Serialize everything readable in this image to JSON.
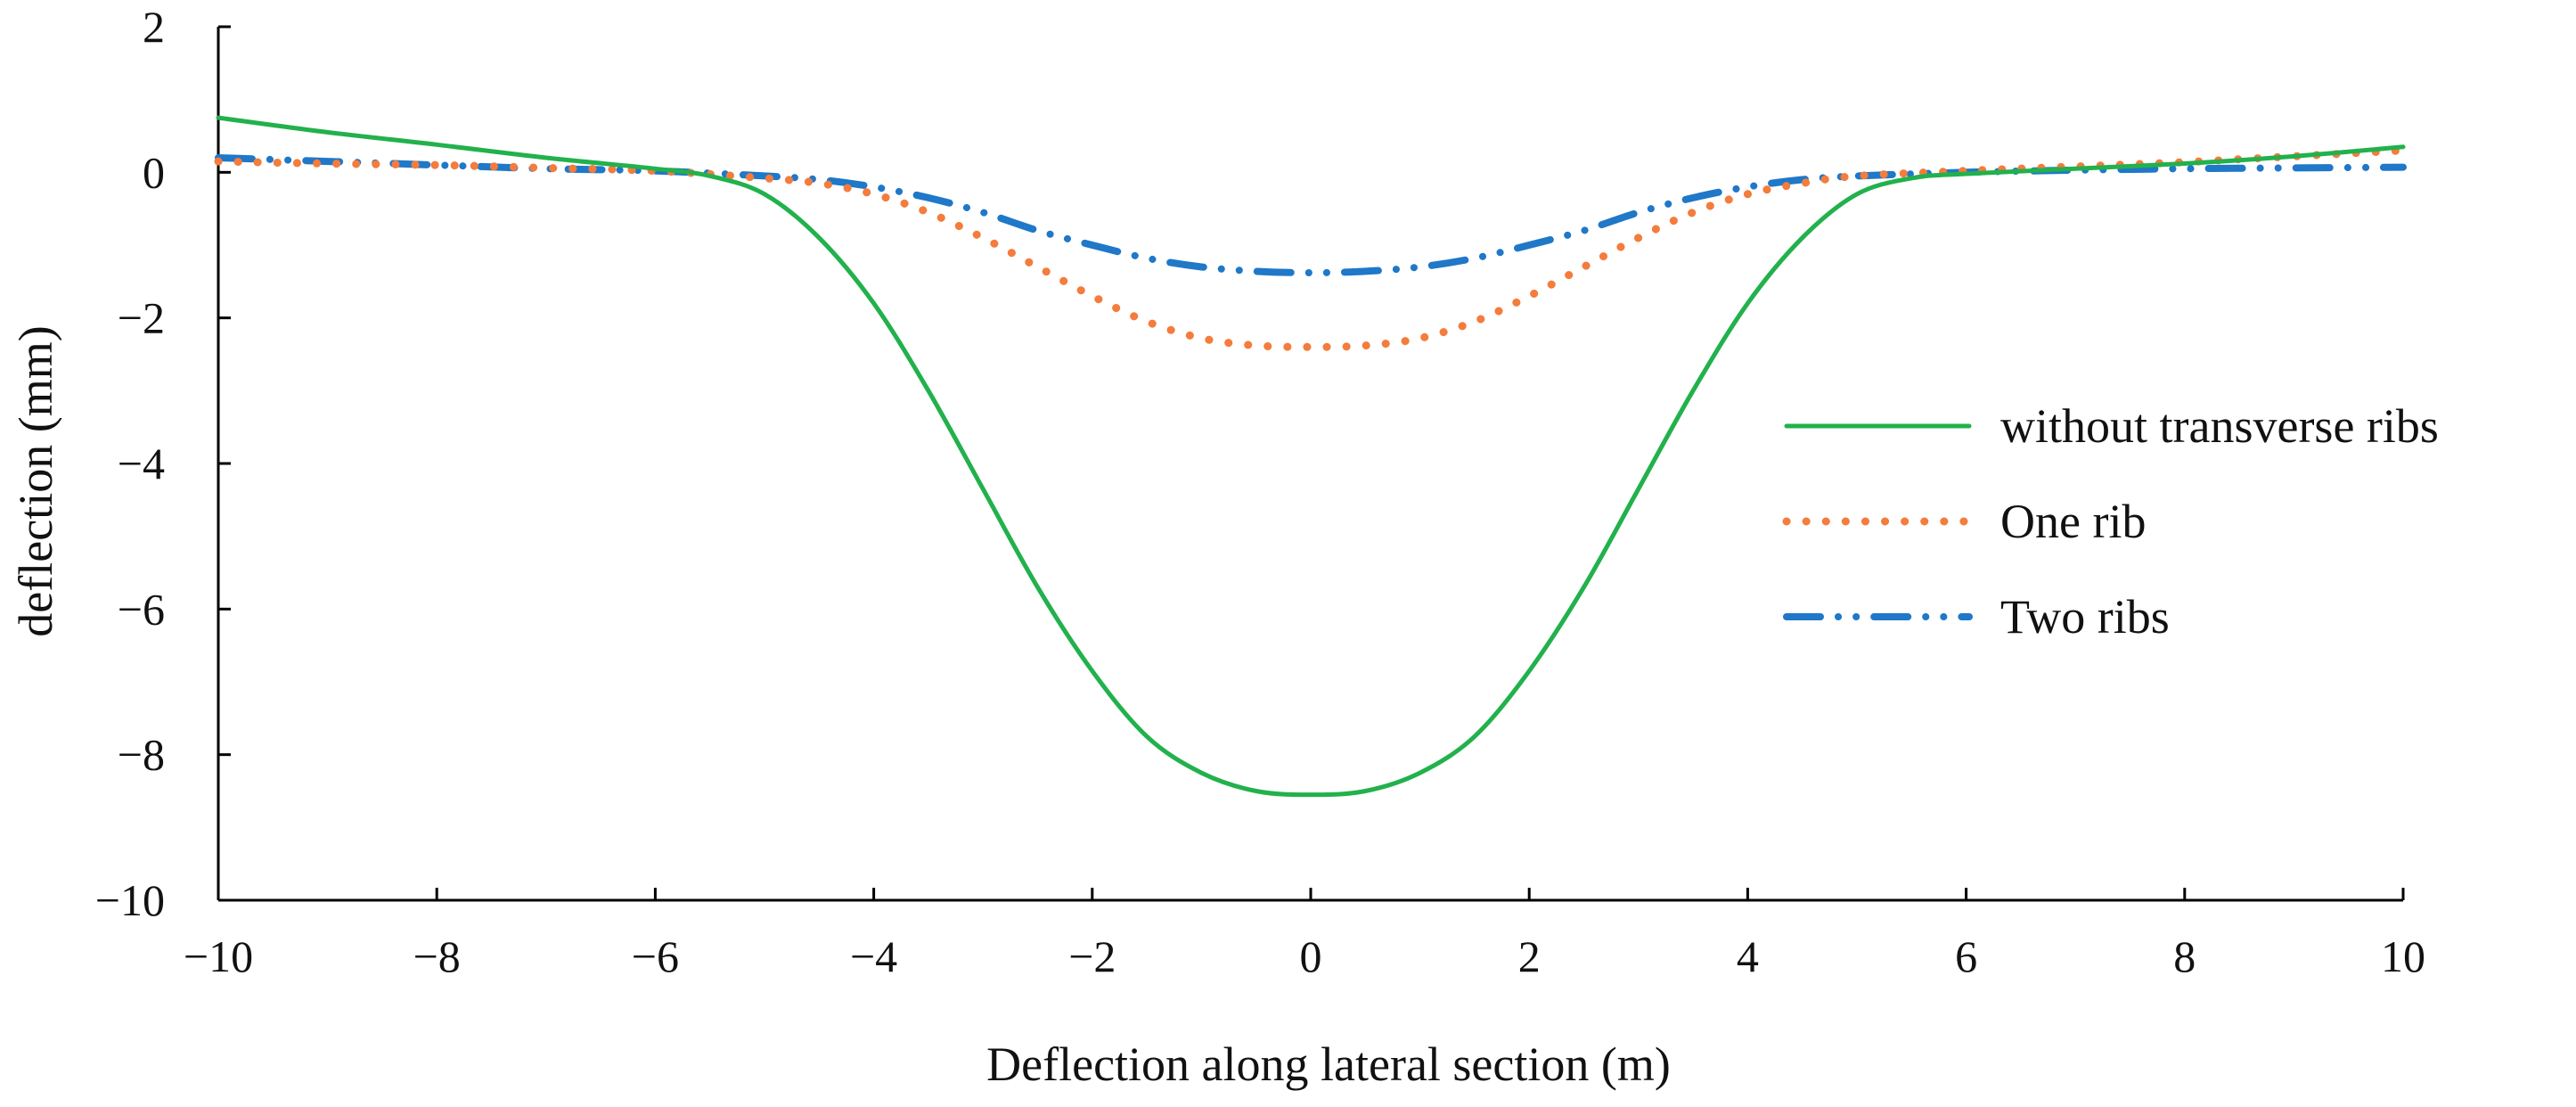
{
  "chart_data": {
    "type": "line",
    "title": "",
    "xlabel": "Deflection along lateral section (m)",
    "ylabel": "deflection (mm)",
    "xlim": [
      -10,
      10
    ],
    "ylim": [
      -10,
      2
    ],
    "grid": false,
    "legend_position": "right",
    "x_ticks": [
      -10,
      -8,
      -6,
      -4,
      -2,
      0,
      2,
      4,
      6,
      8,
      10
    ],
    "x_tick_labels": [
      "−10",
      "−8",
      "−6",
      "−4",
      "−2",
      "0",
      "2",
      "4",
      "6",
      "8",
      "10"
    ],
    "y_ticks": [
      2,
      0,
      -2,
      -4,
      -6,
      -8,
      -10
    ],
    "y_tick_labels": [
      "2",
      "0",
      "−2",
      "−4",
      "−6",
      "−8",
      "−10"
    ],
    "series": [
      {
        "name": "without transverse ribs",
        "color": "#22b14c",
        "style": "solid",
        "x": [
          -10,
          -9,
          -8,
          -7,
          -6,
          -5.5,
          -5,
          -4.5,
          -4,
          -3.5,
          -3,
          -2.5,
          -2,
          -1.5,
          -1,
          -0.5,
          0,
          0.5,
          1,
          1.5,
          2,
          2.5,
          3,
          3.5,
          4,
          4.5,
          5,
          5.5,
          6,
          7,
          8,
          9,
          10
        ],
        "y": [
          0.75,
          0.55,
          0.38,
          0.2,
          0.05,
          -0.05,
          -0.3,
          -0.9,
          -1.8,
          -3.0,
          -4.35,
          -5.7,
          -6.85,
          -7.75,
          -8.25,
          -8.5,
          -8.55,
          -8.5,
          -8.25,
          -7.75,
          -6.85,
          -5.7,
          -4.35,
          -3.0,
          -1.8,
          -0.9,
          -0.3,
          -0.08,
          -0.02,
          0.05,
          0.12,
          0.22,
          0.35
        ]
      },
      {
        "name": "One rib",
        "color": "#f47c3c",
        "style": "dotted",
        "x": [
          -10,
          -9,
          -8,
          -7,
          -6,
          -5,
          -4.5,
          -4,
          -3.5,
          -3,
          -2.5,
          -2,
          -1.5,
          -1,
          -0.5,
          0,
          0.5,
          1,
          1.5,
          2,
          2.5,
          3,
          3.5,
          4,
          4.5,
          5,
          6,
          7,
          8,
          9,
          10
        ],
        "y": [
          0.15,
          0.12,
          0.1,
          0.06,
          0.02,
          -0.08,
          -0.15,
          -0.3,
          -0.55,
          -0.9,
          -1.3,
          -1.7,
          -2.05,
          -2.28,
          -2.38,
          -2.4,
          -2.38,
          -2.28,
          -2.05,
          -1.7,
          -1.3,
          -0.9,
          -0.55,
          -0.3,
          -0.15,
          -0.05,
          0.02,
          0.08,
          0.14,
          0.22,
          0.3
        ]
      },
      {
        "name": "Two ribs",
        "color": "#1f78c8",
        "style": "dash-dot-dot",
        "x": [
          -10,
          -9,
          -8,
          -7,
          -6,
          -5,
          -4.5,
          -4,
          -3.5,
          -3,
          -2.5,
          -2,
          -1.5,
          -1,
          -0.5,
          0,
          0.5,
          1,
          1.5,
          2,
          2.5,
          3,
          3.5,
          4,
          4.5,
          5,
          6,
          7,
          8,
          9,
          10
        ],
        "y": [
          0.2,
          0.15,
          0.1,
          0.05,
          0.02,
          -0.05,
          -0.1,
          -0.2,
          -0.35,
          -0.55,
          -0.8,
          -1.0,
          -1.18,
          -1.3,
          -1.36,
          -1.38,
          -1.36,
          -1.3,
          -1.18,
          -1.0,
          -0.8,
          -0.55,
          -0.35,
          -0.2,
          -0.1,
          -0.05,
          0.0,
          0.03,
          0.05,
          0.06,
          0.07
        ]
      }
    ]
  }
}
